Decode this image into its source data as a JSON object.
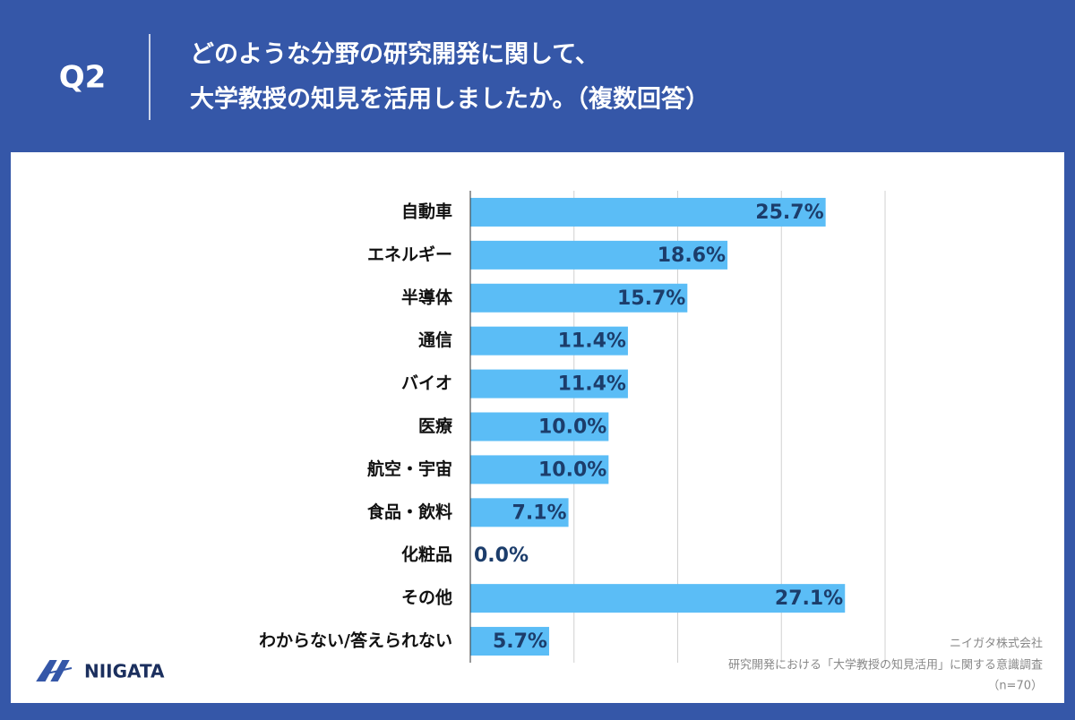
{
  "header": {
    "question": "Q2",
    "title_lines": [
      "どのような分野の研究開発に関して、",
      "大学教授の知見を活用しましたか。（複数回答）"
    ]
  },
  "chart_data": {
    "type": "bar",
    "orientation": "horizontal",
    "categories": [
      "自動車",
      "エネルギー",
      "半導体",
      "通信",
      "バイオ",
      "医療",
      "航空・宇宙",
      "食品・飲料",
      "化粧品",
      "その他",
      "わからない/答えられない"
    ],
    "values": [
      25.7,
      18.6,
      15.7,
      11.4,
      11.4,
      10.0,
      10.0,
      7.1,
      0.0,
      27.1,
      5.7
    ],
    "value_labels": [
      "25.7%",
      "18.6%",
      "15.7%",
      "11.4%",
      "11.4%",
      "10.0%",
      "10.0%",
      "7.1%",
      "0.0%",
      "27.1%",
      "5.7%"
    ],
    "color": "#5bbdf6",
    "xlim": [
      0,
      30
    ],
    "xticks": [
      0,
      7.5,
      15,
      22.5,
      30
    ],
    "grid": true
  },
  "footer": {
    "company": "ニイガタ株式会社",
    "survey": "研究開発における「大学教授の知見活用」に関する意識調査",
    "sample": "（n=70）"
  },
  "logo": {
    "text": "NIIGATA"
  }
}
